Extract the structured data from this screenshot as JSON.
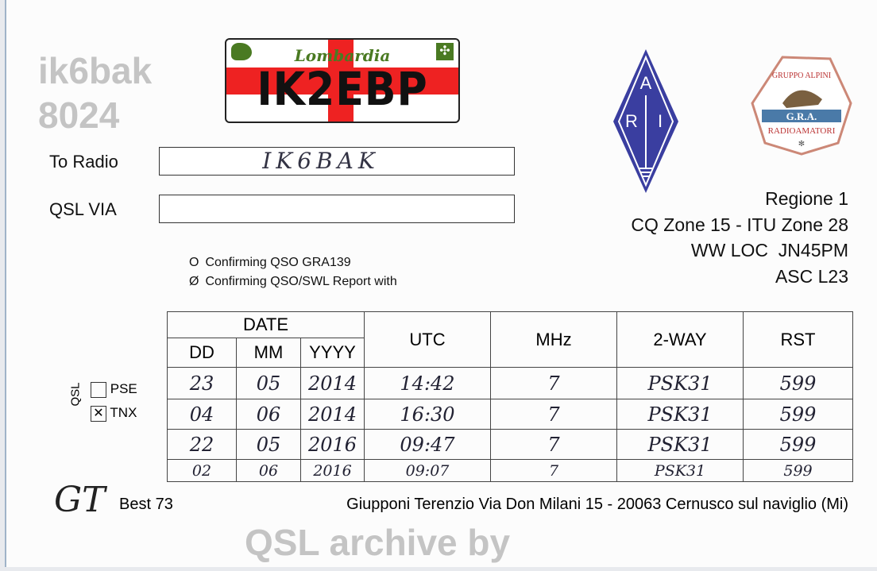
{
  "header": {
    "plate_region": "Lombardia",
    "callsign": "IK2EBP",
    "ari_logo_letters": "ARI",
    "gra_logo": {
      "top": "GRUPPO ALPINI",
      "middle": "G.R.A.",
      "bottom": "RADIOAMATORI"
    }
  },
  "fields": {
    "to_radio_label": "To Radio",
    "to_radio_value": "IK6BAK",
    "qsl_via_label": "QSL VIA",
    "qsl_via_value": ""
  },
  "station_info": [
    "Regione 1",
    "CQ Zone 15 - ITU Zone 28",
    "WW LOC  JN45PM",
    "ASC L23"
  ],
  "watermark": [
    "QSL archive by",
    "ik6bak",
    "8024"
  ],
  "confirm": [
    {
      "mark": "O",
      "text": "Confirming QSO GRA139",
      "checked": false
    },
    {
      "mark": "Ø",
      "text": "Confirming QSO/SWL Report with",
      "checked": true
    }
  ],
  "qsl": {
    "label": "QSL",
    "pse": "PSE",
    "tnx": "TNX",
    "pse_checked": false,
    "tnx_checked": true
  },
  "table": {
    "date_header": "DATE",
    "columns": [
      "DD",
      "MM",
      "YYYY",
      "UTC",
      "MHz",
      "2-WAY",
      "RST"
    ],
    "rows": [
      [
        "23",
        "05",
        "2014",
        "14:42",
        "7",
        "PSK31",
        "599"
      ],
      [
        "04",
        "06",
        "2014",
        "16:30",
        "7",
        "PSK31",
        "599"
      ],
      [
        "22",
        "05",
        "2016",
        "09:47",
        "7",
        "PSK31",
        "599"
      ],
      [
        "02",
        "06",
        "2016",
        "09:07",
        "7",
        "PSK31",
        "599"
      ]
    ]
  },
  "footer": {
    "signature": "GT",
    "greeting": "Best 73",
    "address": "Giupponi Terenzio Via Don Milani 15 - 20063 Cernusco sul naviglio (Mi)"
  }
}
